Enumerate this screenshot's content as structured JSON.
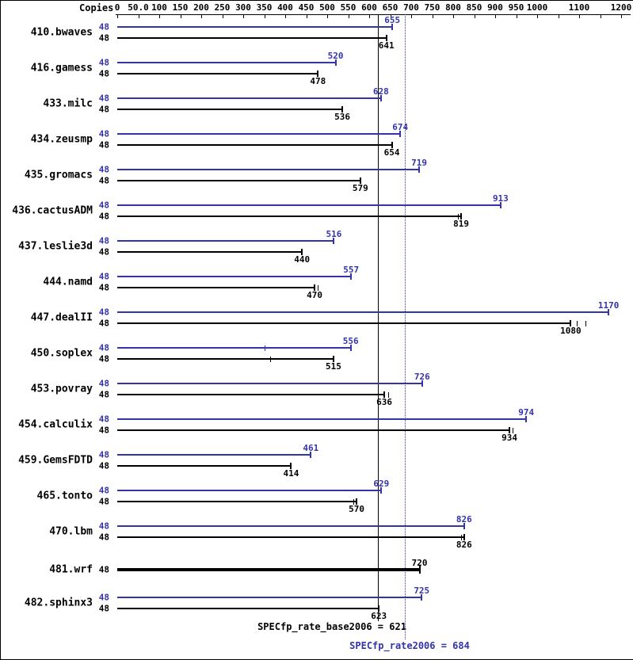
{
  "chart_data": {
    "type": "bar",
    "orientation": "horizontal",
    "copies_header": "Copies",
    "colors": {
      "peak": "#3333aa",
      "base": "#000000",
      "background": "#ffffff"
    },
    "x_axis": {
      "position": "top",
      "range": [
        0,
        1220
      ],
      "ticks": [
        0,
        50,
        100,
        150,
        200,
        250,
        300,
        350,
        400,
        450,
        500,
        550,
        600,
        650,
        700,
        750,
        800,
        850,
        900,
        950,
        1000,
        1100,
        1200
      ],
      "tick_labels": [
        "0",
        "50.0",
        "100",
        "150",
        "200",
        "250",
        "300",
        "350",
        "400",
        "450",
        "500",
        "550",
        "600",
        "650",
        "700",
        "750",
        "800",
        "850",
        "900",
        "950",
        "1000",
        "1100",
        "1200"
      ],
      "minor_ticks": [
        1050,
        1150
      ]
    },
    "benchmarks": [
      {
        "name": "410.bwaves",
        "peak": {
          "copies": 48,
          "value": 655
        },
        "base": {
          "copies": 48,
          "value": 641
        }
      },
      {
        "name": "416.gamess",
        "peak": {
          "copies": 48,
          "value": 520
        },
        "base": {
          "copies": 48,
          "value": 478
        }
      },
      {
        "name": "433.milc",
        "peak": {
          "copies": 48,
          "value": 628
        },
        "base": {
          "copies": 48,
          "value": 536
        }
      },
      {
        "name": "434.zeusmp",
        "peak": {
          "copies": 48,
          "value": 674
        },
        "base": {
          "copies": 48,
          "value": 654
        }
      },
      {
        "name": "435.gromacs",
        "peak": {
          "copies": 48,
          "value": 719
        },
        "base": {
          "copies": 48,
          "value": 579
        }
      },
      {
        "name": "436.cactusADM",
        "peak": {
          "copies": 48,
          "value": 913
        },
        "base": {
          "copies": 48,
          "value": 819,
          "run_marks": [
            812
          ]
        }
      },
      {
        "name": "437.leslie3d",
        "peak": {
          "copies": 48,
          "value": 516
        },
        "base": {
          "copies": 48,
          "value": 440
        }
      },
      {
        "name": "444.namd",
        "peak": {
          "copies": 48,
          "value": 557
        },
        "base": {
          "copies": 48,
          "value": 470,
          "run_marks": [
            477
          ]
        }
      },
      {
        "name": "447.dealII",
        "peak": {
          "copies": 48,
          "value": 1170
        },
        "base": {
          "copies": 48,
          "value": 1080,
          "run_marks": [
            1095,
            1115
          ]
        }
      },
      {
        "name": "450.soplex",
        "peak": {
          "copies": 48,
          "value": 556,
          "run_marks": [
            350
          ]
        },
        "base": {
          "copies": 48,
          "value": 515,
          "run_marks": [
            365
          ]
        }
      },
      {
        "name": "453.povray",
        "peak": {
          "copies": 48,
          "value": 726
        },
        "base": {
          "copies": 48,
          "value": 636,
          "run_marks": [
            645
          ]
        }
      },
      {
        "name": "454.calculix",
        "peak": {
          "copies": 48,
          "value": 974
        },
        "base": {
          "copies": 48,
          "value": 934,
          "run_marks": [
            942
          ]
        }
      },
      {
        "name": "459.GemsFDTD",
        "peak": {
          "copies": 48,
          "value": 461
        },
        "base": {
          "copies": 48,
          "value": 414
        }
      },
      {
        "name": "465.tonto",
        "peak": {
          "copies": 48,
          "value": 629
        },
        "base": {
          "copies": 48,
          "value": 570,
          "run_marks": [
            562
          ]
        }
      },
      {
        "name": "470.lbm",
        "peak": {
          "copies": 48,
          "value": 826
        },
        "base": {
          "copies": 48,
          "value": 826,
          "run_marks": [
            818
          ]
        }
      },
      {
        "name": "481.wrf",
        "single": {
          "copies": 48,
          "value": 720
        }
      },
      {
        "name": "482.sphinx3",
        "peak": {
          "copies": 48,
          "value": 725
        },
        "base": {
          "copies": 48,
          "value": 623
        }
      }
    ],
    "means": {
      "base": {
        "label": "SPECfp_rate_base2006 = 621",
        "value": 621
      },
      "peak": {
        "label": "SPECfp_rate2006 = 684",
        "value": 684
      }
    }
  }
}
